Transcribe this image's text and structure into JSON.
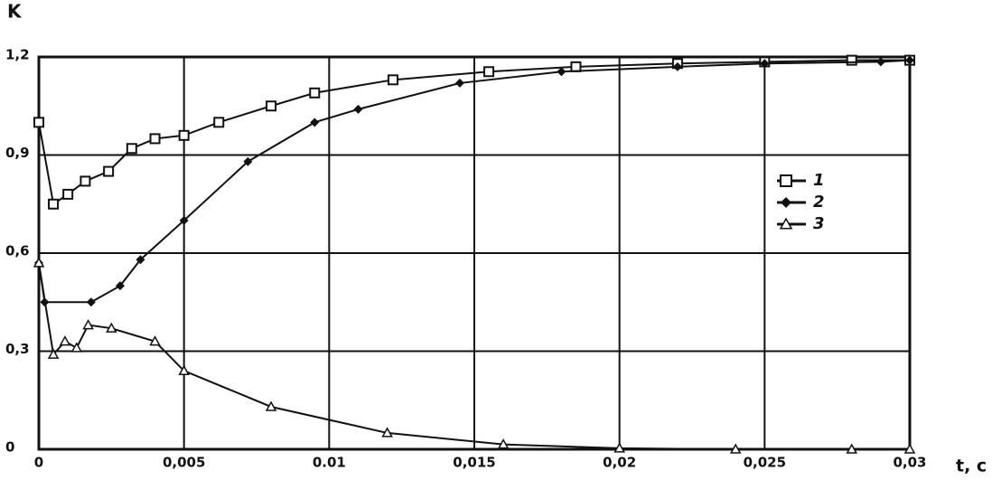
{
  "chart_data": {
    "type": "line",
    "x_label": "t, c",
    "y_label": "K",
    "xlim": [
      0,
      0.03
    ],
    "ylim": [
      0,
      1.2
    ],
    "xticks": [
      0,
      {
        "value": 0.005,
        "label": "0,005"
      },
      {
        "value": 0.01,
        "label": "0.01"
      },
      {
        "value": 0.015,
        "label": "0,015"
      },
      {
        "value": 0.02,
        "label": "0,02"
      },
      {
        "value": 0.025,
        "label": "0,025"
      },
      {
        "value": 0.03,
        "label": "0,03"
      }
    ],
    "yticks": [
      0,
      {
        "value": 0.3,
        "label": "0,3"
      },
      {
        "value": 0.6,
        "label": "0,6"
      },
      {
        "value": 0.9,
        "label": "0,9"
      },
      {
        "value": 1.2,
        "label": "1,2"
      }
    ],
    "grid": true,
    "legend": "right",
    "series": [
      {
        "name": "1",
        "color": "#111111",
        "marker": "square",
        "x": [
          0,
          0.0005,
          0.001,
          0.0016,
          0.0024,
          0.0032,
          0.004,
          0.005,
          0.0062,
          0.008,
          0.0095,
          0.0122,
          0.0155,
          0.0185,
          0.022,
          0.025,
          0.028,
          0.03
        ],
        "values": [
          1.0,
          0.75,
          0.78,
          0.82,
          0.85,
          0.92,
          0.95,
          0.96,
          1.0,
          1.05,
          1.09,
          1.13,
          1.155,
          1.17,
          1.18,
          1.185,
          1.19,
          1.19
        ]
      },
      {
        "name": "2",
        "color": "#111111",
        "marker": "diamond",
        "x": [
          0,
          0.0002,
          0.0018,
          0.0028,
          0.0035,
          0.005,
          0.0072,
          0.0095,
          0.011,
          0.0145,
          0.018,
          0.022,
          0.025,
          0.029,
          0.03
        ],
        "values": [
          0.57,
          0.45,
          0.45,
          0.5,
          0.58,
          0.7,
          0.88,
          1.0,
          1.04,
          1.12,
          1.155,
          1.17,
          1.18,
          1.185,
          1.19
        ]
      },
      {
        "name": "3",
        "color": "#111111",
        "marker": "triangle",
        "x": [
          0,
          0.0005,
          0.0009,
          0.0013,
          0.0017,
          0.0025,
          0.004,
          0.005,
          0.008,
          0.012,
          0.016,
          0.02,
          0.024,
          0.028,
          0.03
        ],
        "values": [
          0.57,
          0.29,
          0.33,
          0.31,
          0.38,
          0.37,
          0.33,
          0.24,
          0.13,
          0.05,
          0.015,
          0.003,
          0,
          0,
          0
        ]
      }
    ]
  }
}
